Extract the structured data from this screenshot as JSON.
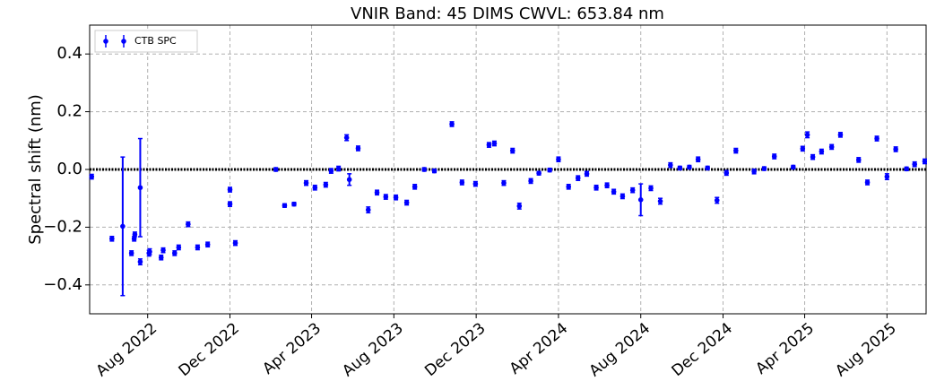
{
  "chart_data": {
    "type": "errorbar",
    "title": "VNIR Band: 45 DIMS CWVL: 653.84 nm",
    "y_label": "Spectral shift (nm)",
    "legend_position": "upper left",
    "grid": true,
    "hline": 0,
    "xlim": [
      "2022-05-07",
      "2025-09-28"
    ],
    "xticks": [
      {
        "value": "2022-08-01",
        "label": "Aug 2022"
      },
      {
        "value": "2022-12-01",
        "label": "Dec 2022"
      },
      {
        "value": "2023-04-01",
        "label": "Apr 2023"
      },
      {
        "value": "2023-08-01",
        "label": "Aug 2023"
      },
      {
        "value": "2023-12-01",
        "label": "Dec 2023"
      },
      {
        "value": "2024-04-01",
        "label": "Apr 2024"
      },
      {
        "value": "2024-08-01",
        "label": "Aug 2024"
      },
      {
        "value": "2024-12-01",
        "label": "Dec 2024"
      },
      {
        "value": "2025-04-01",
        "label": "Apr 2025"
      },
      {
        "value": "2025-08-01",
        "label": "Aug 2025"
      }
    ],
    "ylim": [
      -0.5,
      0.5
    ],
    "yticks": [
      {
        "value": -0.4,
        "label": "−0.4"
      },
      {
        "value": -0.2,
        "label": "−0.2"
      },
      {
        "value": 0,
        "label": "0.0"
      },
      0.2,
      0.4
    ],
    "series": [
      {
        "name": "CTB SPC",
        "color": "#0000ff",
        "x": [
          "2022-05-10",
          "2022-06-09",
          "2022-06-25",
          "2022-07-08",
          "2022-07-12",
          "2022-07-13",
          "2022-07-21",
          "2022-07-21",
          "2022-08-03",
          "2022-08-04",
          "2022-08-21",
          "2022-08-24",
          "2022-09-10",
          "2022-09-16",
          "2022-09-30",
          "2022-10-14",
          "2022-10-29",
          "2022-12-01",
          "2022-12-01",
          "2022-12-09",
          "2023-02-07",
          "2023-02-20",
          "2023-03-06",
          "2023-03-24",
          "2023-04-06",
          "2023-04-22",
          "2023-04-30",
          "2023-05-11",
          "2023-05-23",
          "2023-05-27",
          "2023-06-09",
          "2023-06-24",
          "2023-07-07",
          "2023-07-20",
          "2023-08-04",
          "2023-08-20",
          "2023-09-01",
          "2023-09-15",
          "2023-09-30",
          "2023-10-26",
          "2023-11-10",
          "2023-11-30",
          "2023-12-20",
          "2023-12-28",
          "2024-01-11",
          "2024-01-24",
          "2024-02-03",
          "2024-02-20",
          "2024-03-03",
          "2024-03-19",
          "2024-04-01",
          "2024-04-16",
          "2024-04-30",
          "2024-05-13",
          "2024-05-27",
          "2024-06-12",
          "2024-06-22",
          "2024-07-05",
          "2024-07-20",
          "2024-08-01",
          "2024-08-16",
          "2024-08-30",
          "2024-09-14",
          "2024-09-28",
          "2024-10-12",
          "2024-10-25",
          "2024-11-08",
          "2024-11-22",
          "2024-12-06",
          "2024-12-20",
          "2025-01-16",
          "2025-01-31",
          "2025-02-15",
          "2025-03-15",
          "2025-03-29",
          "2025-04-05",
          "2025-04-13",
          "2025-04-26",
          "2025-05-11",
          "2025-05-24",
          "2025-06-20",
          "2025-07-03",
          "2025-07-17",
          "2025-08-01",
          "2025-08-14",
          "2025-08-30",
          "2025-09-11",
          "2025-09-26"
        ],
        "values": [
          -0.025,
          -0.24,
          -0.197,
          -0.29,
          -0.24,
          -0.225,
          -0.32,
          -0.063,
          -0.29,
          -0.285,
          -0.305,
          -0.28,
          -0.29,
          -0.27,
          -0.19,
          -0.27,
          -0.26,
          -0.07,
          -0.12,
          -0.255,
          0.0,
          -0.125,
          -0.12,
          -0.047,
          -0.063,
          -0.053,
          -0.005,
          0.003,
          0.11,
          -0.035,
          0.073,
          -0.14,
          -0.08,
          -0.095,
          -0.097,
          -0.115,
          -0.06,
          0.0,
          -0.005,
          0.157,
          -0.045,
          -0.05,
          0.085,
          0.09,
          -0.047,
          0.065,
          -0.127,
          -0.04,
          -0.013,
          -0.002,
          0.035,
          -0.06,
          -0.03,
          -0.015,
          -0.063,
          -0.055,
          -0.077,
          -0.093,
          -0.072,
          -0.105,
          -0.065,
          -0.11,
          0.015,
          0.005,
          0.008,
          0.035,
          0.005,
          -0.107,
          -0.012,
          0.065,
          -0.007,
          0.003,
          0.045,
          0.008,
          0.072,
          0.12,
          0.043,
          0.062,
          0.078,
          0.12,
          0.033,
          -0.045,
          0.107,
          -0.025,
          0.07,
          0.002,
          0.018,
          0.028
        ],
        "errors": [
          0.008,
          0.008,
          0.24,
          0.008,
          0.008,
          0.008,
          0.01,
          0.17,
          0.01,
          0.01,
          0.008,
          0.008,
          0.008,
          0.008,
          0.008,
          0.008,
          0.008,
          0.008,
          0.008,
          0.008,
          0.006,
          0.006,
          0.006,
          0.008,
          0.008,
          0.008,
          0.008,
          0.008,
          0.01,
          0.02,
          0.008,
          0.01,
          0.008,
          0.008,
          0.008,
          0.008,
          0.008,
          0.006,
          0.006,
          0.008,
          0.008,
          0.008,
          0.008,
          0.008,
          0.008,
          0.008,
          0.01,
          0.008,
          0.006,
          0.006,
          0.008,
          0.008,
          0.008,
          0.008,
          0.008,
          0.008,
          0.008,
          0.008,
          0.008,
          0.055,
          0.008,
          0.01,
          0.008,
          0.006,
          0.006,
          0.008,
          0.006,
          0.01,
          0.008,
          0.008,
          0.008,
          0.006,
          0.008,
          0.006,
          0.008,
          0.01,
          0.008,
          0.008,
          0.008,
          0.008,
          0.008,
          0.008,
          0.008,
          0.01,
          0.008,
          0.006,
          0.008,
          0.008
        ]
      }
    ]
  }
}
